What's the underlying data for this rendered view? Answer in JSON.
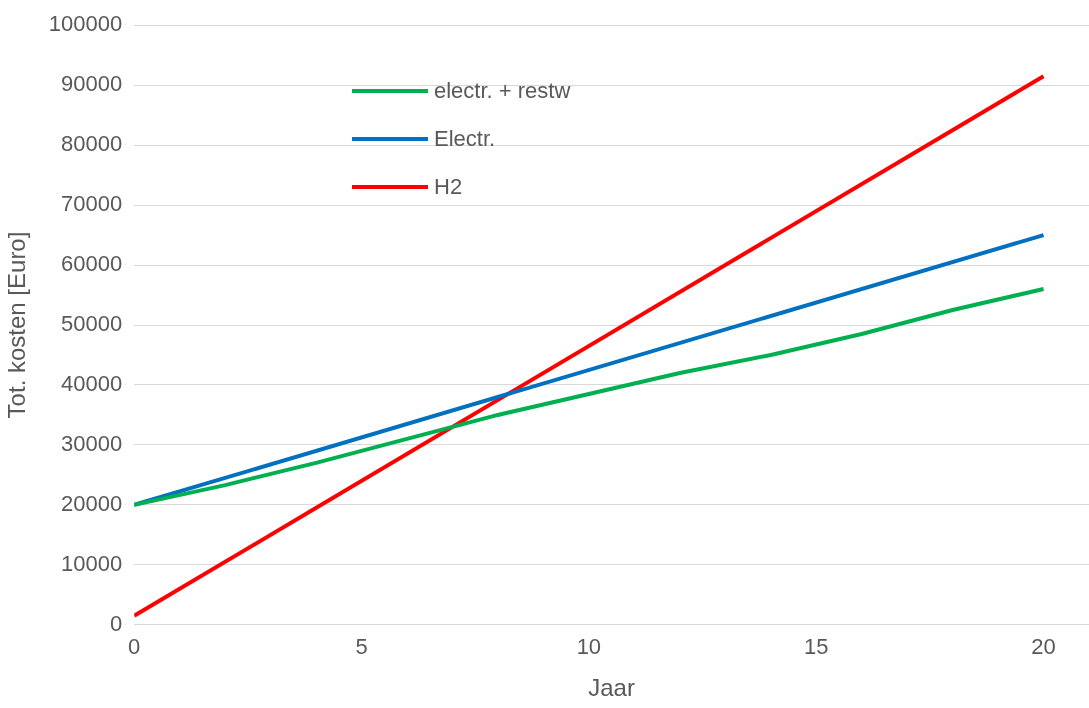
{
  "chart_data": {
    "type": "line",
    "xlabel": "Jaar",
    "ylabel": "Tot. kosten [Euro]",
    "xlim": [
      0,
      21
    ],
    "xticks": [
      0,
      5,
      10,
      15,
      20
    ],
    "ylim": [
      0,
      100000
    ],
    "yticks": [
      0,
      10000,
      20000,
      30000,
      40000,
      50000,
      60000,
      70000,
      80000,
      90000,
      100000
    ],
    "grid": "y",
    "legend": "top left",
    "marker": "none",
    "line_style": "solid",
    "series": [
      {
        "name": "electr. + restw",
        "color": "#00b050",
        "x": [
          0,
          2,
          4,
          6,
          8,
          10,
          12,
          14,
          16,
          18,
          20
        ],
        "values": [
          20000,
          23300,
          27000,
          31000,
          35000,
          38500,
          42000,
          45000,
          48500,
          52500,
          56000
        ]
      },
      {
        "name": "Electr.",
        "color": "#0070c0",
        "x": [
          0,
          20
        ],
        "values": [
          20000,
          65000
        ]
      },
      {
        "name": "H2",
        "color": "#ff0000",
        "x": [
          0,
          20
        ],
        "values": [
          1500,
          91500
        ]
      }
    ]
  }
}
